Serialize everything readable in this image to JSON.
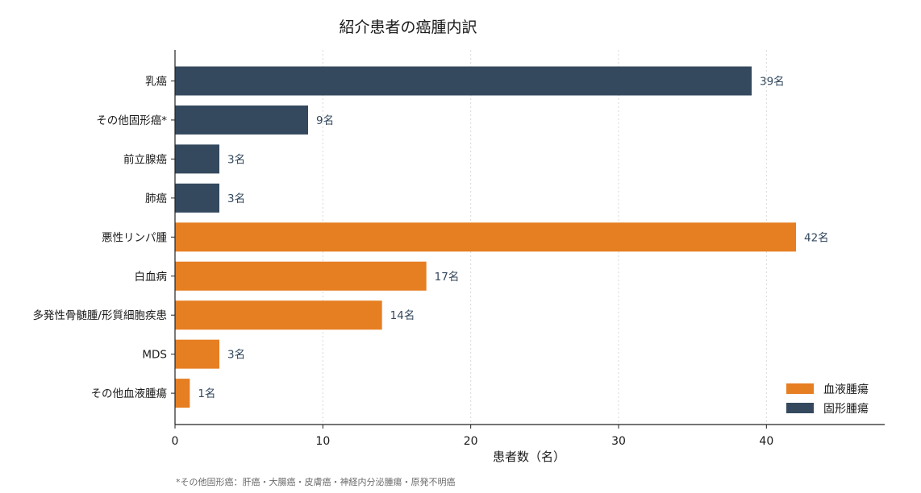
{
  "chart_data": {
    "type": "bar",
    "orientation": "horizontal",
    "title": "紹介患者の癌腫内訳",
    "xlabel": "患者数（名）",
    "ylabel": "",
    "xlim": [
      0,
      48
    ],
    "xticks": [
      0,
      10,
      20,
      30,
      40
    ],
    "grid": "vertical-dotted",
    "legend_position": "bottom-right",
    "value_suffix": "名",
    "categories": [
      "乳癌",
      "その他固形癌*",
      "前立腺癌",
      "肺癌",
      "悪性リンパ腫",
      "白血病",
      "多発性骨髄腫/形質細胞疾患",
      "MDS",
      "その他血液腫瘍"
    ],
    "values": [
      39,
      9,
      3,
      3,
      42,
      17,
      14,
      3,
      1
    ],
    "groups": [
      "固形腫瘍",
      "固形腫瘍",
      "固形腫瘍",
      "固形腫瘍",
      "血液腫瘍",
      "血液腫瘍",
      "血液腫瘍",
      "血液腫瘍",
      "血液腫瘍"
    ],
    "series": [
      {
        "name": "血液腫瘍",
        "color": "#e67e22"
      },
      {
        "name": "固形腫瘍",
        "color": "#34495e"
      }
    ],
    "footnote": "*その他固形癌：肝癌・大腸癌・皮膚癌・神経内分泌腫瘍・原発不明癌"
  },
  "colors": {
    "axis": "#222222",
    "grid": "#d9d9d9",
    "value_label": "#34495e"
  }
}
